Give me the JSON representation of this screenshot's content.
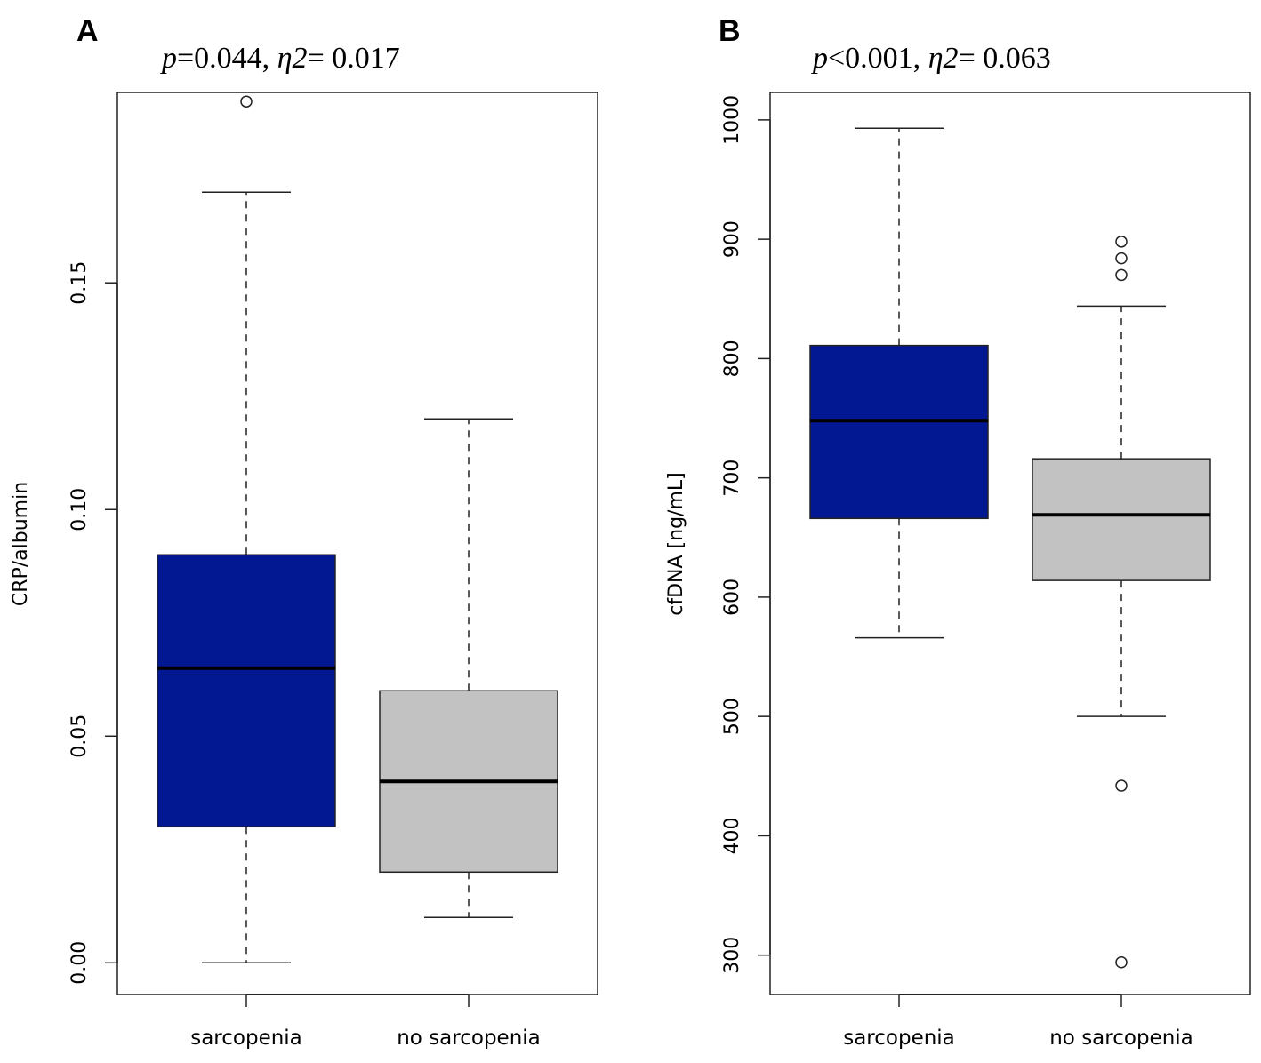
{
  "chart_data": [
    {
      "type": "box",
      "panel_label": "A",
      "stats": {
        "p_symbol": "p",
        "p_text": "=0.044, ",
        "eta_symbol": "η2",
        "eta_text": "= 0.017"
      },
      "ylabel": "CRP/albumin",
      "xlabel": "",
      "ylim": [
        -0.007,
        0.192
      ],
      "yticks": [
        {
          "value": 0.0,
          "label": "0.00"
        },
        {
          "value": 0.05,
          "label": "0.05"
        },
        {
          "value": 0.1,
          "label": "0.10"
        },
        {
          "value": 0.15,
          "label": "0.15"
        }
      ],
      "categories": [
        "sarcopenia",
        "no sarcopenia"
      ],
      "boxes": [
        {
          "name": "sarcopenia",
          "color": "#021893",
          "whisker_low": 0.0,
          "q1": 0.03,
          "median": 0.065,
          "q3": 0.09,
          "whisker_high": 0.17,
          "outliers": [
            0.19
          ]
        },
        {
          "name": "no sarcopenia",
          "color": "#c2c2c2",
          "whisker_low": 0.01,
          "q1": 0.02,
          "median": 0.04,
          "q3": 0.06,
          "whisker_high": 0.12,
          "outliers": []
        }
      ]
    },
    {
      "type": "box",
      "panel_label": "B",
      "stats": {
        "p_symbol": "p",
        "p_text": "<0.001, ",
        "eta_symbol": "η2",
        "eta_text": "= 0.063"
      },
      "ylabel": "cfDNA [ng/mL]",
      "xlabel": "",
      "ylim": [
        267,
        1023
      ],
      "yticks": [
        {
          "value": 300,
          "label": "300"
        },
        {
          "value": 400,
          "label": "400"
        },
        {
          "value": 500,
          "label": "500"
        },
        {
          "value": 600,
          "label": "600"
        },
        {
          "value": 700,
          "label": "700"
        },
        {
          "value": 800,
          "label": "800"
        },
        {
          "value": 900,
          "label": "900"
        },
        {
          "value": 1000,
          "label": "1000"
        }
      ],
      "categories": [
        "sarcopenia",
        "no sarcopenia"
      ],
      "boxes": [
        {
          "name": "sarcopenia",
          "color": "#021893",
          "whisker_low": 566,
          "q1": 666,
          "median": 748,
          "q3": 811,
          "whisker_high": 993,
          "outliers": []
        },
        {
          "name": "no sarcopenia",
          "color": "#c2c2c2",
          "whisker_low": 500,
          "q1": 614,
          "median": 669,
          "q3": 716,
          "whisker_high": 844,
          "outliers": [
            898,
            884,
            870,
            442,
            294
          ]
        }
      ]
    }
  ]
}
